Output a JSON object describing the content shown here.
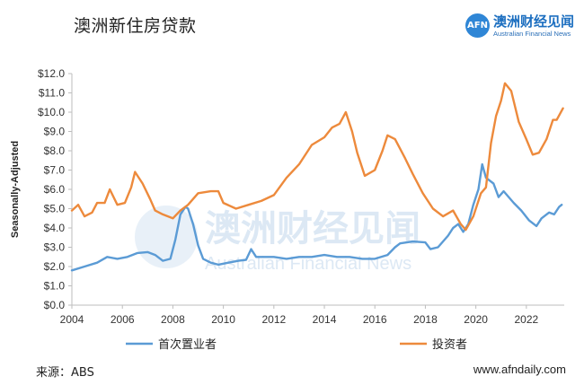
{
  "title": "澳洲新住房贷款",
  "brand": {
    "cn": "澳洲财经见闻",
    "en": "Australian Financial News",
    "logo_text": "AFN"
  },
  "watermark": {
    "cn": "澳洲财经见闻",
    "en": "Australian Financial News"
  },
  "footer": {
    "source": "来源：ABS",
    "site": "www.afndaily.com"
  },
  "colors": {
    "first_home_buyers": "#5b9bd5",
    "investors": "#ed8a3c",
    "watermark": "#d7e5f3"
  },
  "chart_data": {
    "type": "line",
    "title": "",
    "xlabel": "",
    "ylabel": "Seasonally-Adjusted",
    "xlim": [
      2004,
      2023.5
    ],
    "ylim": [
      0,
      12
    ],
    "x_ticks": [
      2004,
      2006,
      2008,
      2010,
      2012,
      2014,
      2016,
      2018,
      2020,
      2022
    ],
    "x_tick_labels": [
      "2004",
      "2006",
      "2008",
      "2010",
      "2012",
      "2014",
      "2016",
      "2018",
      "2020",
      "2022"
    ],
    "y_ticks": [
      0,
      1,
      2,
      3,
      4,
      5,
      6,
      7,
      8,
      9,
      10,
      11,
      12
    ],
    "y_tick_labels": [
      "$0.0",
      "$1.0",
      "$2.0",
      "$3.0",
      "$4.0",
      "$5.0",
      "$6.0",
      "$7.0",
      "$8.0",
      "$9.0",
      "$10.0",
      "$11.0",
      "$12.0"
    ],
    "grid": false,
    "legend_position": "bottom",
    "series": [
      {
        "name": "首次置业者",
        "color": "#5b9bd5",
        "points": [
          [
            2004.0,
            1.8
          ],
          [
            2004.5,
            2.0
          ],
          [
            2005.0,
            2.2
          ],
          [
            2005.4,
            2.5
          ],
          [
            2005.8,
            2.4
          ],
          [
            2006.2,
            2.5
          ],
          [
            2006.6,
            2.7
          ],
          [
            2007.0,
            2.75
          ],
          [
            2007.3,
            2.6
          ],
          [
            2007.6,
            2.3
          ],
          [
            2007.9,
            2.4
          ],
          [
            2008.1,
            3.4
          ],
          [
            2008.3,
            4.7
          ],
          [
            2008.5,
            5.1
          ],
          [
            2008.6,
            5.0
          ],
          [
            2008.8,
            4.2
          ],
          [
            2009.0,
            3.1
          ],
          [
            2009.2,
            2.4
          ],
          [
            2009.5,
            2.2
          ],
          [
            2009.8,
            2.1
          ],
          [
            2010.2,
            2.2
          ],
          [
            2010.6,
            2.3
          ],
          [
            2010.9,
            2.35
          ],
          [
            2011.1,
            2.9
          ],
          [
            2011.3,
            2.5
          ],
          [
            2011.6,
            2.5
          ],
          [
            2012.0,
            2.5
          ],
          [
            2012.5,
            2.4
          ],
          [
            2013.0,
            2.5
          ],
          [
            2013.5,
            2.5
          ],
          [
            2014.0,
            2.6
          ],
          [
            2014.5,
            2.5
          ],
          [
            2015.0,
            2.5
          ],
          [
            2015.5,
            2.4
          ],
          [
            2016.0,
            2.4
          ],
          [
            2016.5,
            2.6
          ],
          [
            2016.8,
            3.0
          ],
          [
            2017.0,
            3.2
          ],
          [
            2017.5,
            3.3
          ],
          [
            2018.0,
            3.25
          ],
          [
            2018.2,
            2.9
          ],
          [
            2018.5,
            3.0
          ],
          [
            2018.9,
            3.6
          ],
          [
            2019.1,
            4.0
          ],
          [
            2019.3,
            4.2
          ],
          [
            2019.5,
            3.8
          ],
          [
            2019.7,
            4.2
          ],
          [
            2019.9,
            5.2
          ],
          [
            2020.1,
            6.0
          ],
          [
            2020.25,
            7.3
          ],
          [
            2020.4,
            6.6
          ],
          [
            2020.7,
            6.3
          ],
          [
            2020.9,
            5.6
          ],
          [
            2021.1,
            5.9
          ],
          [
            2021.3,
            5.6
          ],
          [
            2021.5,
            5.3
          ],
          [
            2021.8,
            4.9
          ],
          [
            2022.1,
            4.4
          ],
          [
            2022.4,
            4.1
          ],
          [
            2022.6,
            4.5
          ],
          [
            2022.9,
            4.8
          ],
          [
            2023.1,
            4.7
          ],
          [
            2023.3,
            5.1
          ],
          [
            2023.4,
            5.2
          ]
        ]
      },
      {
        "name": "投资者",
        "color": "#ed8a3c",
        "points": [
          [
            2004.0,
            4.9
          ],
          [
            2004.25,
            5.2
          ],
          [
            2004.5,
            4.6
          ],
          [
            2004.8,
            4.8
          ],
          [
            2005.0,
            5.3
          ],
          [
            2005.3,
            5.3
          ],
          [
            2005.5,
            6.0
          ],
          [
            2005.8,
            5.2
          ],
          [
            2006.1,
            5.3
          ],
          [
            2006.35,
            6.1
          ],
          [
            2006.5,
            6.9
          ],
          [
            2006.8,
            6.3
          ],
          [
            2007.1,
            5.5
          ],
          [
            2007.3,
            4.9
          ],
          [
            2007.6,
            4.7
          ],
          [
            2008.0,
            4.5
          ],
          [
            2008.3,
            4.9
          ],
          [
            2008.6,
            5.2
          ],
          [
            2009.0,
            5.8
          ],
          [
            2009.5,
            5.9
          ],
          [
            2009.8,
            5.9
          ],
          [
            2010.0,
            5.3
          ],
          [
            2010.5,
            5.0
          ],
          [
            2011.0,
            5.2
          ],
          [
            2011.5,
            5.4
          ],
          [
            2012.0,
            5.7
          ],
          [
            2012.5,
            6.6
          ],
          [
            2013.0,
            7.3
          ],
          [
            2013.5,
            8.3
          ],
          [
            2014.0,
            8.7
          ],
          [
            2014.3,
            9.2
          ],
          [
            2014.6,
            9.4
          ],
          [
            2014.85,
            10.0
          ],
          [
            2015.1,
            9.0
          ],
          [
            2015.3,
            7.9
          ],
          [
            2015.6,
            6.7
          ],
          [
            2016.0,
            7.0
          ],
          [
            2016.3,
            8.0
          ],
          [
            2016.5,
            8.8
          ],
          [
            2016.8,
            8.6
          ],
          [
            2017.2,
            7.6
          ],
          [
            2017.5,
            6.8
          ],
          [
            2017.9,
            5.8
          ],
          [
            2018.3,
            5.0
          ],
          [
            2018.7,
            4.6
          ],
          [
            2019.1,
            4.9
          ],
          [
            2019.4,
            4.2
          ],
          [
            2019.6,
            3.9
          ],
          [
            2019.9,
            4.6
          ],
          [
            2020.2,
            5.8
          ],
          [
            2020.4,
            6.1
          ],
          [
            2020.6,
            8.4
          ],
          [
            2020.8,
            9.8
          ],
          [
            2021.0,
            10.6
          ],
          [
            2021.15,
            11.5
          ],
          [
            2021.4,
            11.1
          ],
          [
            2021.7,
            9.5
          ],
          [
            2022.0,
            8.6
          ],
          [
            2022.25,
            7.8
          ],
          [
            2022.5,
            7.9
          ],
          [
            2022.8,
            8.6
          ],
          [
            2023.05,
            9.6
          ],
          [
            2023.2,
            9.6
          ],
          [
            2023.45,
            10.2
          ]
        ]
      }
    ]
  }
}
